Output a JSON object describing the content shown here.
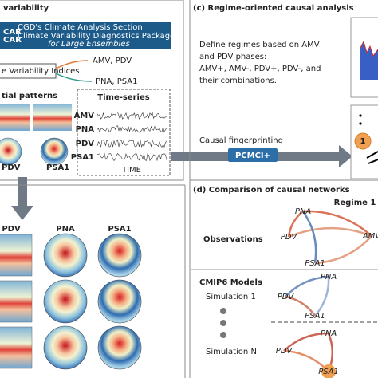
{
  "panel_a": {
    "title": "variability",
    "package": {
      "line1": "CGD's Climate Analysis Section",
      "line2": "Climate Variability Diagnostics Package",
      "line3": "for Large Ensembles"
    },
    "indices_box": "e Variability Indices",
    "indices": [
      "AMV,  PDV",
      "PNA,  PSA1"
    ],
    "spatial_title": "tial patterns",
    "spatial_labels": [
      "PDV",
      "PSA1"
    ],
    "timeseries_title": "Time-series",
    "timeseries_labels": [
      "AMV",
      "PNA",
      "PDV",
      "PSA1"
    ],
    "time_axis": "TIME"
  },
  "panel_b": {
    "columns": [
      "PDV",
      "PNA",
      "PSA1"
    ]
  },
  "panel_c": {
    "title": "(c) Regime-oriented causal analysis",
    "text": [
      "Define regimes based on AMV",
      "and PDV phases:",
      "AMV+, AMV-, PDV+, PDV-, and",
      "their combinations."
    ],
    "fingerprint": "Causal fingerprinting",
    "method": "PCMCI+",
    "node": "1"
  },
  "panel_d": {
    "title": "(d) Comparison of causal networks",
    "regime": "Regime 1",
    "observations": "Observations",
    "models": "CMIP6 Models",
    "simulations": [
      "Simulation 1",
      "Simulation N"
    ],
    "nodes": [
      "PNA",
      "PDV",
      "AMV",
      "PSA1"
    ]
  }
}
